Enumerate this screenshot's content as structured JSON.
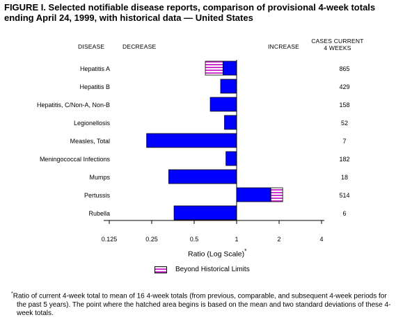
{
  "title": "FIGURE I. Selected notifiable disease reports, comparison of provisional 4-week totals ending April 24, 1999, with historical data — United States",
  "headers": {
    "disease": "DISEASE",
    "decrease": "DECREASE",
    "increase": "INCREASE",
    "cases_line1": "CASES CURRENT",
    "cases_line2": "4 WEEKS"
  },
  "colors": {
    "bar": "#0000ff",
    "hatch_bg": "#ffffff",
    "hatch_line": "#cc33cc"
  },
  "chart_data": {
    "type": "bar",
    "orientation": "horizontal",
    "scale": "log2",
    "baseline": 1,
    "xlim": [
      0.125,
      4
    ],
    "xticks": [
      0.125,
      0.25,
      0.5,
      1,
      2,
      4
    ],
    "xtick_labels": [
      "0.125",
      "0.25",
      "0.5",
      "1",
      "2",
      "4"
    ],
    "xlabel": "Ratio (Log Scale)",
    "xlabel_mark": "*",
    "grid": false,
    "legend": "bottom-center",
    "categories": [
      "Hepatitis A",
      "Hepatitis B",
      "Hepatitis, C/Non-A, Non-B",
      "Legionellosis",
      "Measles, Total",
      "Meningococcal Infections",
      "Mumps",
      "Pertussis",
      "Rubella"
    ],
    "values": [
      0.6,
      0.77,
      0.65,
      0.82,
      0.23,
      0.84,
      0.33,
      2.12,
      0.36
    ],
    "historical_limit": [
      0.8,
      null,
      null,
      null,
      null,
      null,
      null,
      1.75,
      null
    ],
    "cases_current_4_weeks": [
      "865",
      "429",
      "158",
      "52",
      "7",
      "182",
      "18",
      "514",
      "6"
    ]
  },
  "legend_label": "Beyond Historical Limits",
  "footnote": {
    "mark": "*",
    "text": "Ratio of current 4-week total to mean of 16 4-week totals (from previous, comparable, and subsequent 4-week periods for the past 5 years). The point where the hatched area begins is based on the mean and two standard deviations of these 4-week totals."
  }
}
